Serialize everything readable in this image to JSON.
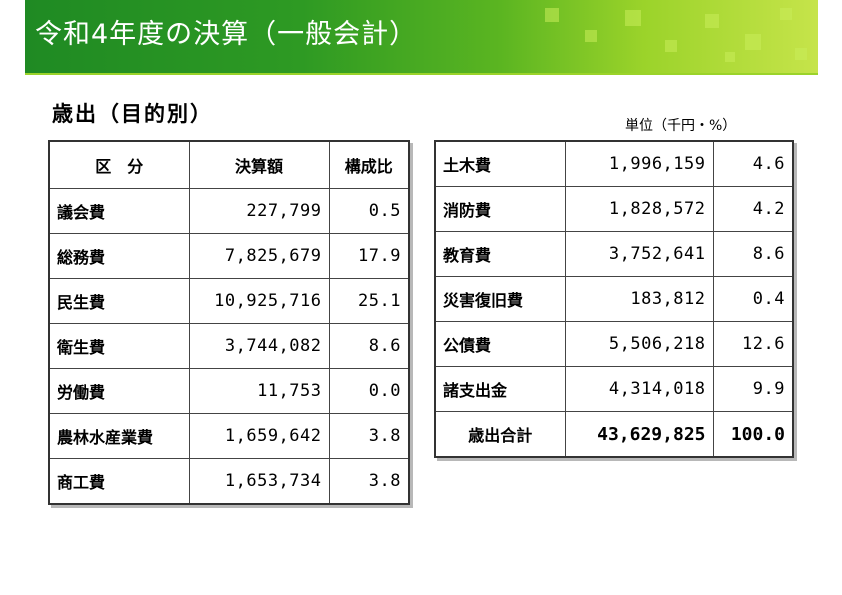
{
  "header": {
    "title": "令和4年度の決算（一般会計）"
  },
  "section": {
    "title": "歳出（目的別）"
  },
  "unit_label": "単位（千円・%）",
  "left_table": {
    "headers": [
      "区　分",
      "決算額",
      "構成比"
    ],
    "rows": [
      {
        "category": "議会費",
        "amount": "227,799",
        "ratio": "0.5"
      },
      {
        "category": "総務費",
        "amount": "7,825,679",
        "ratio": "17.9"
      },
      {
        "category": "民生費",
        "amount": "10,925,716",
        "ratio": "25.1"
      },
      {
        "category": "衛生費",
        "amount": "3,744,082",
        "ratio": "8.6"
      },
      {
        "category": "労働費",
        "amount": "11,753",
        "ratio": "0.0"
      },
      {
        "category": "農林水産業費",
        "amount": "1,659,642",
        "ratio": "3.8"
      },
      {
        "category": "商工費",
        "amount": "1,653,734",
        "ratio": "3.8"
      }
    ]
  },
  "right_table": {
    "rows": [
      {
        "category": "土木費",
        "amount": "1,996,159",
        "ratio": "4.6"
      },
      {
        "category": "消防費",
        "amount": "1,828,572",
        "ratio": "4.2"
      },
      {
        "category": "教育費",
        "amount": "3,752,641",
        "ratio": "8.6"
      },
      {
        "category": "災害復旧費",
        "amount": "183,812",
        "ratio": "0.4"
      },
      {
        "category": "公債費",
        "amount": "5,506,218",
        "ratio": "12.6"
      },
      {
        "category": "諸支出金",
        "amount": "4,314,018",
        "ratio": "9.9"
      }
    ],
    "total": {
      "category": "歳出合計",
      "amount": "43,629,825",
      "ratio": "100.0"
    }
  }
}
